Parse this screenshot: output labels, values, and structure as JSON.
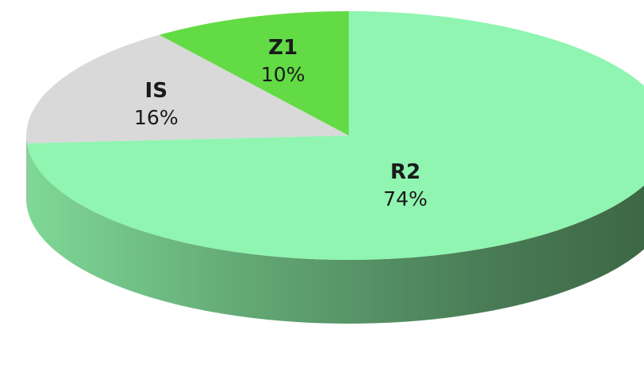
{
  "chart_data": {
    "type": "pie",
    "style": "3d",
    "categories": [
      "R2",
      "IS",
      "Z1"
    ],
    "values": [
      74,
      16,
      10
    ],
    "labels": [
      "74%",
      "16%",
      "10%"
    ],
    "colors": [
      "#8ff5b0",
      "#d9d9d9",
      "#63db45"
    ],
    "side_colors": [
      "#3f6e48",
      "#9a9a9a",
      "#3e8f2a"
    ],
    "title": "",
    "legend": "none"
  }
}
